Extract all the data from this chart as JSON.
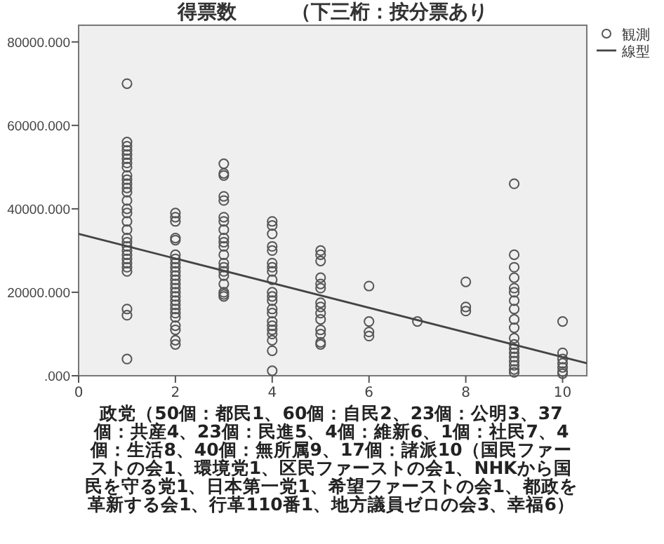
{
  "chart_data": {
    "type": "scatter",
    "title": "得票数        （下三桁：按分票あり",
    "xlabel": "政党（50個：都民1、60個：自民2、23個：公明3、37個：共産4、23個：民進5、4個：維新6、1個：社民7、4個：生活8、40個：無所属9、17個：諸派10（国民ファーストの会1、環境党1、区民ファーストの会1、NHKから国民を守る党1、日本第一党1、希望ファーストの会1、都政を革新する会1、行革110番1、地方議員ゼロの会3、幸福6）",
    "xlim": [
      0,
      10.5
    ],
    "ylim": [
      0,
      84000
    ],
    "xticks": [
      0,
      2,
      4,
      6,
      8,
      10
    ],
    "yticks": [
      {
        "value": 0,
        "label": ".000"
      },
      {
        "value": 20000,
        "label": "20000.000"
      },
      {
        "value": 40000,
        "label": "40000.000"
      },
      {
        "value": 60000,
        "label": "60000.000"
      },
      {
        "value": 80000,
        "label": "80000.000"
      }
    ],
    "legend": "top right",
    "series": [
      {
        "name": "観測",
        "color": "#555555",
        "marker": "circle",
        "x": [
          1,
          1,
          1,
          1,
          1,
          1,
          1,
          1,
          1,
          1,
          1,
          1,
          1,
          1,
          1,
          1,
          1,
          1,
          1,
          1,
          1,
          1,
          1,
          1,
          1,
          1,
          1,
          1,
          1,
          1,
          2,
          2,
          2,
          2,
          2,
          2,
          2,
          2,
          2,
          2,
          2,
          2,
          2,
          2,
          2,
          2,
          2,
          2,
          2,
          2,
          2,
          2,
          2,
          2,
          2,
          3,
          3,
          3,
          3,
          3,
          3,
          3,
          3,
          3,
          3,
          3,
          3,
          3,
          3,
          3,
          3,
          3,
          3,
          3,
          3,
          4,
          4,
          4,
          4,
          4,
          4,
          4,
          4,
          4,
          4,
          4,
          4,
          4,
          4,
          4,
          4,
          4,
          4,
          4,
          4,
          4,
          5,
          5,
          5,
          5,
          5,
          5,
          5,
          5,
          5,
          5,
          5,
          5,
          5,
          5,
          6,
          6,
          6,
          6,
          7,
          8,
          8,
          8,
          9,
          9,
          9,
          9,
          9,
          9,
          9,
          9,
          9,
          9,
          9,
          9,
          9,
          9,
          9,
          9,
          9,
          9,
          9,
          10,
          10,
          10,
          10,
          10,
          10,
          10
        ],
        "values": [
          70000,
          56000,
          55000,
          54000,
          53000,
          51000,
          50000,
          48000,
          46000,
          44000,
          42000,
          40000,
          39000,
          37000,
          35000,
          33000,
          32000,
          31000,
          30000,
          29000,
          28000,
          27000,
          26000,
          25000,
          16000,
          14500,
          4000,
          52000,
          47000,
          45000,
          39000,
          38000,
          37000,
          33000,
          32500,
          29000,
          28000,
          27000,
          26000,
          25000,
          24000,
          23000,
          22000,
          21000,
          20000,
          19000,
          18000,
          17000,
          16000,
          15000,
          14000,
          12000,
          11000,
          8500,
          7500,
          50800,
          48000,
          43000,
          42000,
          38000,
          37000,
          35000,
          33000,
          32000,
          31000,
          29000,
          27000,
          26000,
          25000,
          24000,
          22000,
          20000,
          19500,
          19000,
          48500,
          37000,
          36000,
          34000,
          31000,
          30000,
          27000,
          26000,
          25000,
          23000,
          20000,
          19000,
          18000,
          16000,
          15000,
          13000,
          12000,
          11000,
          10000,
          8500,
          6000,
          1200,
          30000,
          29000,
          27500,
          23500,
          22000,
          21000,
          17500,
          16500,
          15000,
          13500,
          11000,
          10000,
          8000,
          7500,
          21500,
          13000,
          10500,
          9500,
          13000,
          22500,
          16500,
          15500,
          46000,
          29000,
          26000,
          23500,
          21000,
          20000,
          18000,
          16000,
          13500,
          11500,
          9000,
          7500,
          6500,
          5500,
          4500,
          3500,
          2500,
          1500,
          800,
          13000,
          5500,
          4000,
          3000,
          2000,
          1000,
          500
        ]
      },
      {
        "name": "線型",
        "type": "line",
        "marker": "none",
        "color": "#444444",
        "x": [
          0,
          10.5
        ],
        "values": [
          34000,
          3000
        ]
      }
    ]
  }
}
